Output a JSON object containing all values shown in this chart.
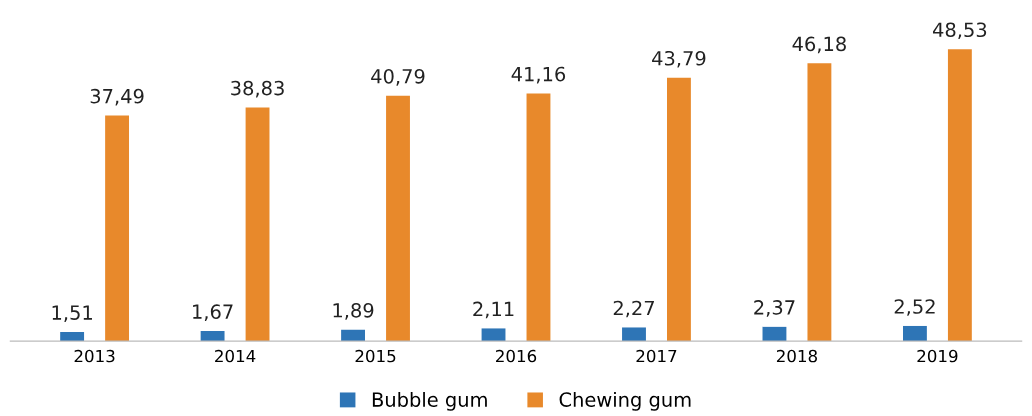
{
  "chart_data": {
    "type": "bar",
    "categories": [
      "2013",
      "2014",
      "2015",
      "2016",
      "2017",
      "2018",
      "2019"
    ],
    "series": [
      {
        "name": "Bubble gum",
        "color": "#2e75b6",
        "values": [
          1.51,
          1.67,
          1.89,
          2.11,
          2.27,
          2.37,
          2.52
        ],
        "value_labels": [
          "1,51",
          "1,67",
          "1,89",
          "2,11",
          "2,27",
          "2,37",
          "2,52"
        ]
      },
      {
        "name": "Chewing gum",
        "color": "#e8892b",
        "values": [
          37.49,
          38.83,
          40.79,
          41.16,
          43.79,
          46.18,
          48.53
        ],
        "value_labels": [
          "37,49",
          "38,83",
          "40,79",
          "41,16",
          "43,79",
          "46,18",
          "48,53"
        ]
      }
    ],
    "legend": "bottom",
    "grid": false
  }
}
